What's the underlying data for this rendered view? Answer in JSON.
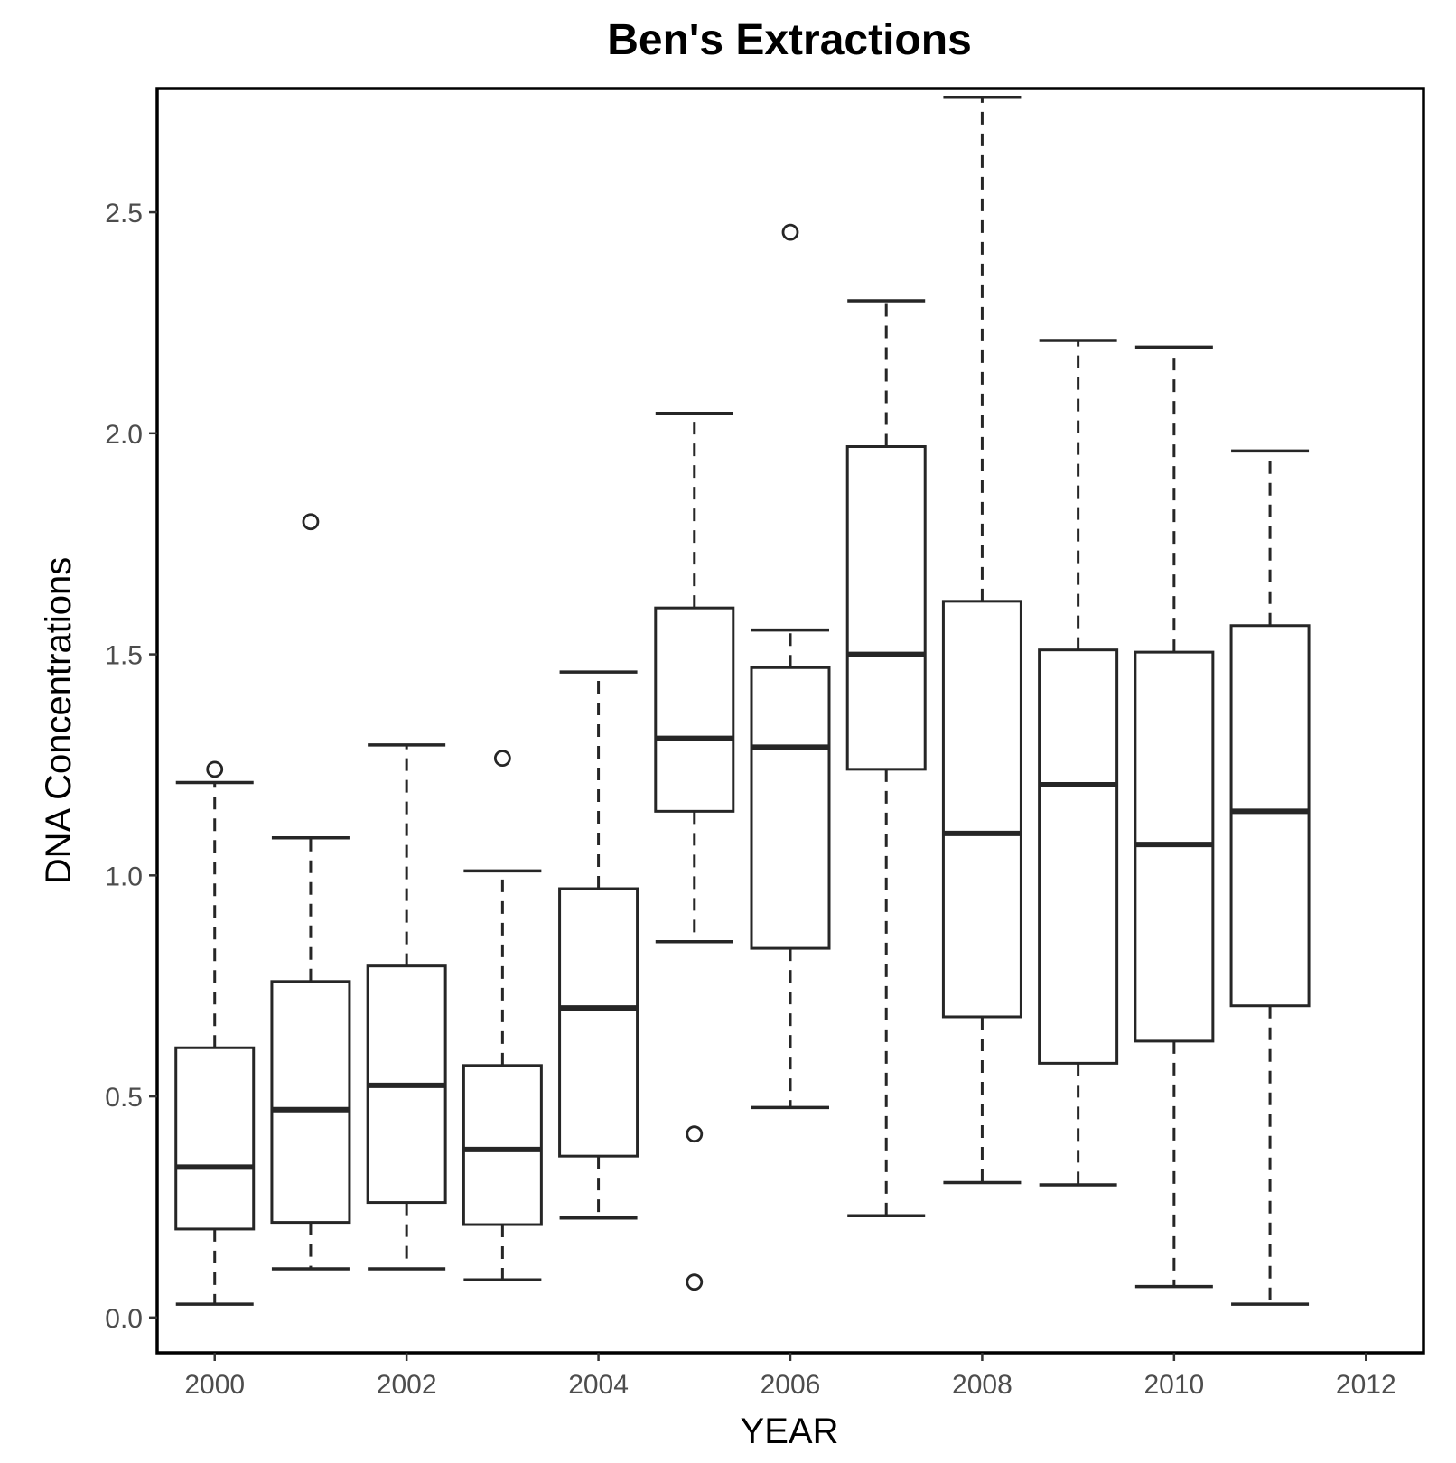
{
  "chart_data": {
    "type": "boxplot",
    "title": "Ben's Extractions",
    "xlabel": "YEAR",
    "ylabel": "DNA Concentrations",
    "ylim": [
      -0.08,
      2.78
    ],
    "xlim": [
      1999.4,
      2012.6
    ],
    "y_ticks": [
      0.0,
      0.5,
      1.0,
      1.5,
      2.0,
      2.5
    ],
    "y_tick_labels": [
      "0.0",
      "0.5",
      "1.0",
      "1.5",
      "2.0",
      "2.5"
    ],
    "x_ticks": [
      2000,
      2002,
      2004,
      2006,
      2008,
      2010,
      2012
    ],
    "x_tick_labels": [
      "2000",
      "2002",
      "2004",
      "2006",
      "2008",
      "2010",
      "2012"
    ],
    "grid": false,
    "boxes": [
      {
        "x": 2000,
        "whisker_low": 0.03,
        "q1": 0.2,
        "median": 0.34,
        "q3": 0.61,
        "whisker_high": 1.21,
        "outliers": [
          1.24
        ]
      },
      {
        "x": 2001,
        "whisker_low": 0.11,
        "q1": 0.215,
        "median": 0.47,
        "q3": 0.76,
        "whisker_high": 1.085,
        "outliers": [
          1.8
        ]
      },
      {
        "x": 2002,
        "whisker_low": 0.11,
        "q1": 0.26,
        "median": 0.525,
        "q3": 0.795,
        "whisker_high": 1.295,
        "outliers": []
      },
      {
        "x": 2003,
        "whisker_low": 0.085,
        "q1": 0.21,
        "median": 0.38,
        "q3": 0.57,
        "whisker_high": 1.01,
        "outliers": [
          1.265
        ]
      },
      {
        "x": 2004,
        "whisker_low": 0.225,
        "q1": 0.365,
        "median": 0.7,
        "q3": 0.97,
        "whisker_high": 1.46,
        "outliers": []
      },
      {
        "x": 2005,
        "whisker_low": 0.85,
        "q1": 1.145,
        "median": 1.31,
        "q3": 1.605,
        "whisker_high": 2.045,
        "outliers": [
          0.415,
          0.08
        ]
      },
      {
        "x": 2006,
        "whisker_low": 0.475,
        "q1": 0.835,
        "median": 1.29,
        "q3": 1.47,
        "whisker_high": 1.555,
        "outliers": [
          2.455
        ]
      },
      {
        "x": 2007,
        "whisker_low": 0.23,
        "q1": 1.24,
        "median": 1.5,
        "q3": 1.97,
        "whisker_high": 2.3,
        "outliers": []
      },
      {
        "x": 2008,
        "whisker_low": 0.305,
        "q1": 0.68,
        "median": 1.095,
        "q3": 1.62,
        "whisker_high": 2.76,
        "outliers": []
      },
      {
        "x": 2009,
        "whisker_low": 0.3,
        "q1": 0.575,
        "median": 1.205,
        "q3": 1.51,
        "whisker_high": 2.21,
        "outliers": []
      },
      {
        "x": 2010,
        "whisker_low": 0.07,
        "q1": 0.625,
        "median": 1.07,
        "q3": 1.505,
        "whisker_high": 2.195,
        "outliers": []
      },
      {
        "x": 2011,
        "whisker_low": 0.03,
        "q1": 0.705,
        "median": 1.145,
        "q3": 1.565,
        "whisker_high": 1.96,
        "outliers": []
      }
    ]
  },
  "colors": {
    "stroke": "#262626",
    "panel_border": "#000000",
    "tick_text": "#4d4d4d",
    "background": "#ffffff"
  }
}
